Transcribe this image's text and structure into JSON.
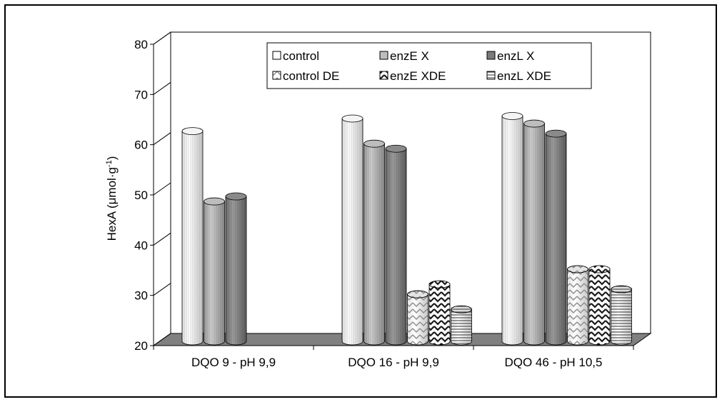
{
  "chart_data": {
    "type": "bar",
    "style": "3d-cylinder",
    "title": "",
    "xlabel": "",
    "ylabel": "HexA (μmol·g",
    "ylabel_sup": "-1",
    "ylabel_close": ")",
    "ylim": [
      20,
      80
    ],
    "yticks": [
      "20",
      "30",
      "40",
      "50",
      "60",
      "70",
      "80"
    ],
    "categories": [
      "DQO 9 - pH 9,9",
      "DQO 16 - pH 9,9",
      "DQO 46 - pH 10,5"
    ],
    "series": [
      {
        "name": "control",
        "pattern": "light-vertical",
        "values": [
          62,
          64.5,
          65
        ]
      },
      {
        "name": "enzE X",
        "pattern": "medium-vertical",
        "values": [
          48,
          59.5,
          63.5
        ]
      },
      {
        "name": "enzL X",
        "pattern": "dark-vertical",
        "values": [
          49,
          58.5,
          61.5
        ]
      },
      {
        "name": "control DE",
        "pattern": "light-zigzag",
        "values": [
          null,
          29.5,
          34.5
        ]
      },
      {
        "name": "enzE XDE",
        "pattern": "dark-zigzag",
        "values": [
          null,
          31.5,
          34.5
        ]
      },
      {
        "name": "enzL XDE",
        "pattern": "horizontal-lines",
        "values": [
          null,
          26.5,
          30.5
        ]
      }
    ],
    "legend_position": "top-center",
    "grid": false,
    "colors": {
      "floor": "#808080",
      "wall": "#ffffff",
      "axis": "#000000"
    }
  }
}
